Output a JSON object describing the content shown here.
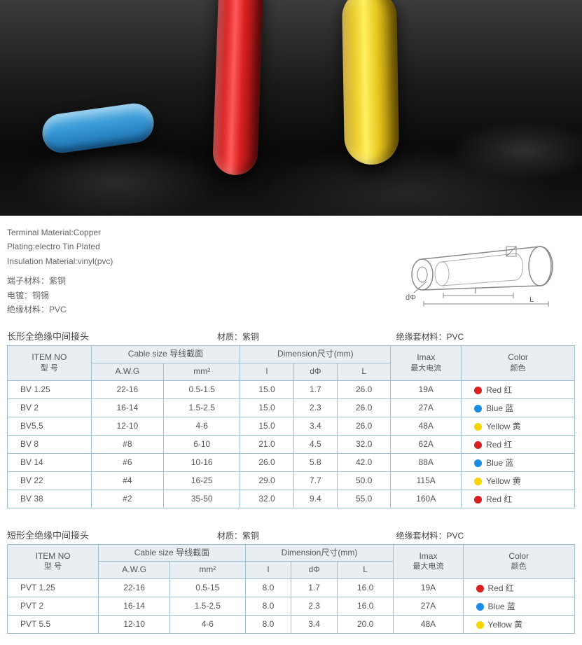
{
  "meta_en": {
    "l1": "Terminal Material:Copper",
    "l2": "Plating:electro Tin Plated",
    "l3": "Insulation Material:vinyl(pvc)"
  },
  "meta_cn": {
    "l1": "端子材料：紫铜",
    "l2": "电镀：铜锡",
    "l3": "绝缘材料：PVC"
  },
  "diagram": {
    "dphi": "dΦ",
    "l_small": "l",
    "l_big": "L"
  },
  "colors": {
    "red": {
      "hex": "#d82020",
      "label": "Red 红"
    },
    "blue": {
      "hex": "#1a8be0",
      "label": "Blue 蓝"
    },
    "yellow": {
      "hex": "#f5d400",
      "label": "Yellow 黄"
    }
  },
  "table_border": "#9fbfcf",
  "header_bg": "#e8eef2",
  "headers": {
    "item_no": "ITEM NO",
    "item_no_cn": "型    号",
    "cable": "Cable size 导线截面",
    "awg": "A.W.G",
    "mm2": "mm²",
    "dim": "Dimension尺寸(mm)",
    "dim_l_small": "l",
    "dim_dphi": "dΦ",
    "dim_l_big": "L",
    "imax": "Imax",
    "imax_cn": "最大电流",
    "color": "Color",
    "color_cn": "颜色"
  },
  "section1": {
    "title": "长形全绝缘中间接头",
    "mat": "材质：紫铜",
    "ins": "绝缘套材料：PVC",
    "rows": [
      {
        "item": "BV 1.25",
        "awg": "22-16",
        "mm2": "0.5-1.5",
        "l": "15.0",
        "d": "1.7",
        "L": "26.0",
        "imax": "19A",
        "color": "red"
      },
      {
        "item": "BV 2",
        "awg": "16-14",
        "mm2": "1.5-2.5",
        "l": "15.0",
        "d": "2.3",
        "L": "26.0",
        "imax": "27A",
        "color": "blue"
      },
      {
        "item": "BV5.5",
        "awg": "12-10",
        "mm2": "4-6",
        "l": "15.0",
        "d": "3.4",
        "L": "26.0",
        "imax": "48A",
        "color": "yellow"
      },
      {
        "item": "BV 8",
        "awg": "#8",
        "mm2": "6-10",
        "l": "21.0",
        "d": "4.5",
        "L": "32.0",
        "imax": "62A",
        "color": "red"
      },
      {
        "item": "BV 14",
        "awg": "#6",
        "mm2": "10-16",
        "l": "26.0",
        "d": "5.8",
        "L": "42.0",
        "imax": "88A",
        "color": "blue"
      },
      {
        "item": "BV 22",
        "awg": "#4",
        "mm2": "16-25",
        "l": "29.0",
        "d": "7.7",
        "L": "50.0",
        "imax": "115A",
        "color": "yellow"
      },
      {
        "item": "BV 38",
        "awg": "#2",
        "mm2": "35-50",
        "l": "32.0",
        "d": "9.4",
        "L": "55.0",
        "imax": "160A",
        "color": "red"
      }
    ]
  },
  "section2": {
    "title": "短形全绝缘中间接头",
    "mat": "材质：紫铜",
    "ins": "绝缘套材料：PVC",
    "rows": [
      {
        "item": "PVT 1.25",
        "awg": "22-16",
        "mm2": "0.5-15",
        "l": "8.0",
        "d": "1.7",
        "L": "16.0",
        "imax": "19A",
        "color": "red"
      },
      {
        "item": "PVT 2",
        "awg": "16-14",
        "mm2": "1.5-2.5",
        "l": "8.0",
        "d": "2.3",
        "L": "16.0",
        "imax": "27A",
        "color": "blue"
      },
      {
        "item": "PVT 5.5",
        "awg": "12-10",
        "mm2": "4-6",
        "l": "8.0",
        "d": "3.4",
        "L": "20.0",
        "imax": "48A",
        "color": "yellow"
      }
    ]
  }
}
